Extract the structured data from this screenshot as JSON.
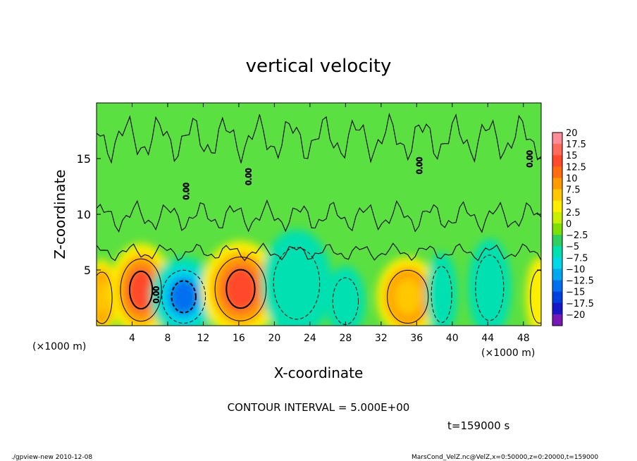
{
  "chart_data": {
    "type": "heatmap",
    "title": "vertical velocity",
    "xlabel": "X-coordinate",
    "ylabel": "Z-coordinate",
    "x_unit_left": "(×1000 m)",
    "x_unit_right": "(×1000 m)",
    "xlim": [
      0,
      50
    ],
    "ylim": [
      0,
      20
    ],
    "xticks": [
      "4",
      "8",
      "12",
      "16",
      "20",
      "24",
      "28",
      "32",
      "36",
      "40",
      "44",
      "48"
    ],
    "xtick_values": [
      4,
      8,
      12,
      16,
      20,
      24,
      28,
      32,
      36,
      40,
      44,
      48
    ],
    "yticks": [
      "5",
      "10",
      "15"
    ],
    "ytick_values": [
      5,
      10,
      15
    ],
    "colorbar_labels": [
      "20",
      "17.5",
      "15",
      "12.5",
      "10",
      "7.5",
      "5",
      "2.5",
      "0",
      "−2.5",
      "−5",
      "−7.5",
      "−10",
      "−12.5",
      "−15",
      "−17.5",
      "−20"
    ],
    "colorbar_levels": [
      20,
      17.5,
      15,
      12.5,
      10,
      7.5,
      5,
      2.5,
      0,
      -2.5,
      -5,
      -7.5,
      -10,
      -12.5,
      -15,
      -17.5,
      -20
    ],
    "colorbar_colors": [
      "#ff8c96",
      "#ff6a5a",
      "#ff4a2a",
      "#ff6c10",
      "#ff9a00",
      "#ffc800",
      "#ffee00",
      "#c8ee00",
      "#7de000",
      "#30d060",
      "#00e0b0",
      "#00d8e8",
      "#00a8f0",
      "#0070f0",
      "#0040e0",
      "#1818c8",
      "#7818b8"
    ],
    "contour_interval": "CONTOUR INTERVAL = 5.000E+00",
    "contour_label": "0.00",
    "time_label": "t=159000 s",
    "cells": [
      {
        "x": 0.6,
        "z": 2.5,
        "w": 1.6,
        "v": 7
      },
      {
        "x": 5.0,
        "z": 3.2,
        "w": 3.2,
        "v": 14
      },
      {
        "x": 9.8,
        "z": 2.6,
        "w": 3.4,
        "v": -12
      },
      {
        "x": 16.2,
        "z": 3.3,
        "w": 4.0,
        "v": 15
      },
      {
        "x": 22.5,
        "z": 3.8,
        "w": 3.6,
        "v": -6
      },
      {
        "x": 28.0,
        "z": 2.2,
        "w": 2.0,
        "v": -4
      },
      {
        "x": 35.0,
        "z": 2.6,
        "w": 3.2,
        "v": 8
      },
      {
        "x": 38.8,
        "z": 2.8,
        "w": 1.6,
        "v": -4
      },
      {
        "x": 44.2,
        "z": 3.4,
        "w": 2.2,
        "v": -4
      },
      {
        "x": 49.8,
        "z": 2.6,
        "w": 1.4,
        "v": 6
      }
    ]
  },
  "footer": {
    "left": "./gpview-new  2010-12-08",
    "right": "MarsCond_VelZ.nc@VelZ,x=0:50000,z=0:20000,t=159000"
  }
}
